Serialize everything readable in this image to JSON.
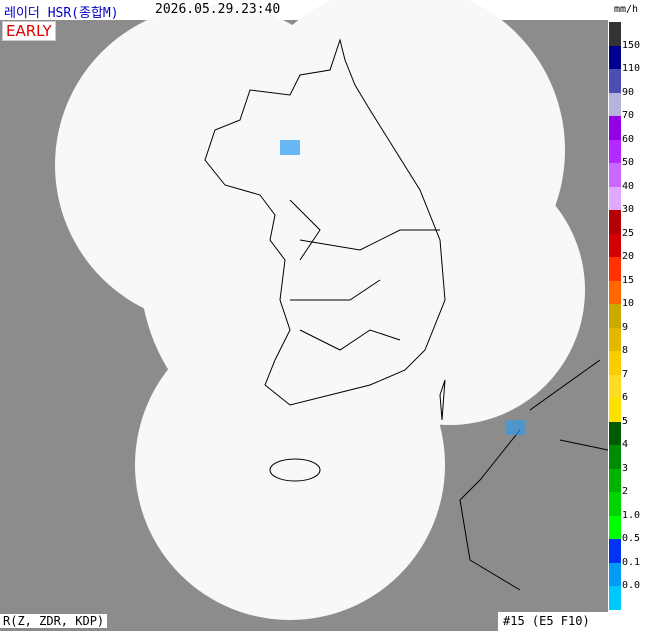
{
  "header": {
    "title": "레이더 HSR(종합M)",
    "time": "2026.05.29.23:40",
    "badge": "EARLY"
  },
  "legend": {
    "unit": "mm/h",
    "top_color": "#333333",
    "items": [
      {
        "label": "150",
        "color": "#000090"
      },
      {
        "label": "110",
        "color": "#4c4eb1"
      },
      {
        "label": "90",
        "color": "#b3b4de"
      },
      {
        "label": "70",
        "color": "#9300e4"
      },
      {
        "label": "60",
        "color": "#b329ff"
      },
      {
        "label": "50",
        "color": "#c969ff"
      },
      {
        "label": "40",
        "color": "#e0a9ff"
      },
      {
        "label": "30",
        "color": "#b40000"
      },
      {
        "label": "25",
        "color": "#d20000"
      },
      {
        "label": "20",
        "color": "#ff3200"
      },
      {
        "label": "15",
        "color": "#ff6600"
      },
      {
        "label": "10",
        "color": "#ccaa00"
      },
      {
        "label": "9",
        "color": "#e0b900"
      },
      {
        "label": "8",
        "color": "#f9cd00"
      },
      {
        "label": "7",
        "color": "#ffdc1f"
      },
      {
        "label": "6",
        "color": "#ffe100"
      },
      {
        "label": "5",
        "color": "#005a00"
      },
      {
        "label": "4",
        "color": "#008c00"
      },
      {
        "label": "3",
        "color": "#00b300"
      },
      {
        "label": "2",
        "color": "#00d500"
      },
      {
        "label": "1.0",
        "color": "#00ff00"
      },
      {
        "label": "0.5",
        "color": "#0033f5"
      },
      {
        "label": "0.1",
        "color": "#009bf5"
      },
      {
        "label": "0.0",
        "color": "#00c8ff"
      }
    ]
  },
  "footer": {
    "method": "R(Z, ZDR, KDP)",
    "info": "#15 (E5 F10)"
  }
}
